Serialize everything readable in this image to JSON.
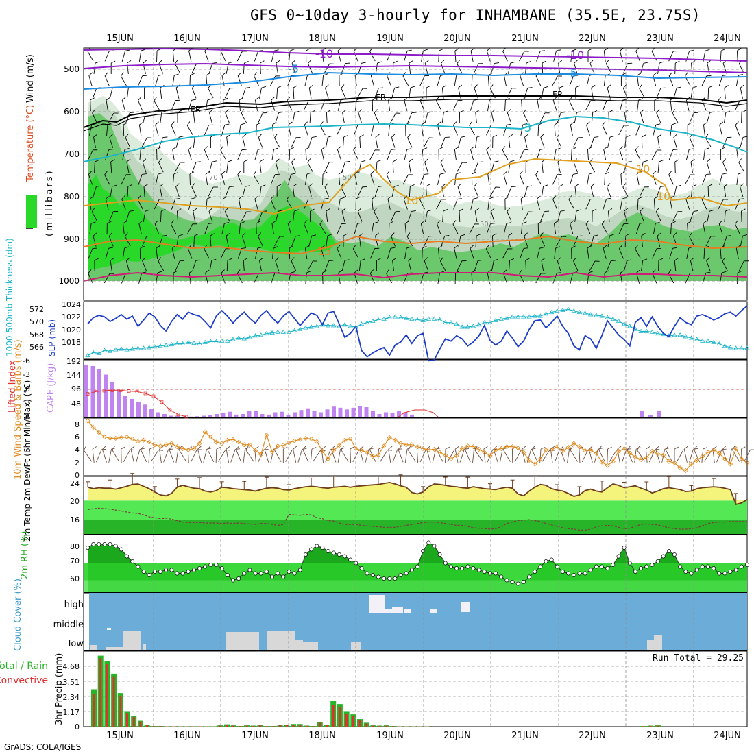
{
  "title": "GFS 0~10day 3-hourly for INHAMBANE (35.5E, 23.75S)",
  "credit": "GrADS: COLA/IGES",
  "dates": [
    "15JUN",
    "16JUN",
    "17JUN",
    "18JUN",
    "19JUN",
    "20JUN",
    "21JUN",
    "22JUN",
    "23JUN",
    "24JUN"
  ],
  "colors": {
    "rh_light": "#dcecdc",
    "rh_mid": "#c0d6c0",
    "rh_green": "#6cc86c",
    "rh_bright": "#2ad82a",
    "purple": "#8c1cc8",
    "blue": "#1c8ce0",
    "cyan": "#1cb4c8",
    "orange": "#e0a020",
    "orange2": "#e87c20",
    "magenta": "#d01c78",
    "slp": "#1c3cc8",
    "thk": "#1cb4c8",
    "cape": "#c084f0",
    "li": "#e03030",
    "wind": "#e08c20",
    "temp_fill": "#f4f47c",
    "temp_line": "#6c3c1c",
    "dew_fill1": "#54e854",
    "dew_fill2": "#28b428",
    "rh2_dark": "#1ca81c",
    "rh2_mid": "#3cd83c",
    "rh2_light": "#6ce86c",
    "cloud_bg": "#6cacd8",
    "precip_tot": "#28b428",
    "precip_conv": "#e03030"
  },
  "chart_data": [
    {
      "type": "contour",
      "panel": "upper-air",
      "ylabel_rh": "RH (%)",
      "ylabel_temp": "Temperature (°C)",
      "ylabel_wind": "Wind (m/s)",
      "ylabel_p": "(millibars)",
      "y_ticks": [
        "500",
        "600",
        "700",
        "800",
        "900",
        "1000"
      ],
      "contour_labels": [
        {
          "text": "-10",
          "color": "purple"
        },
        {
          "text": "-10",
          "color": "purple"
        },
        {
          "text": "-5",
          "color": "blue"
        },
        {
          "text": "-5",
          "color": "blue"
        },
        {
          "text": "FR",
          "color": "black"
        },
        {
          "text": "FR",
          "color": "black"
        },
        {
          "text": "FR",
          "color": "black"
        },
        {
          "text": "5",
          "color": "cyan"
        },
        {
          "text": "10",
          "color": "orange"
        },
        {
          "text": "10",
          "color": "orange"
        },
        {
          "text": "10",
          "color": "orange"
        },
        {
          "text": "15",
          "color": "orange2"
        },
        {
          "text": "70",
          "color": "gray"
        },
        {
          "text": "50",
          "color": "gray"
        },
        {
          "text": "50",
          "color": "gray"
        }
      ]
    },
    {
      "type": "line",
      "panel": "slp-thickness",
      "ylabel_left": "1000-500mb Thickness (dm)",
      "ylabel_right": "SLP (mb)",
      "y_ticks_left": [
        "572",
        "570",
        "568",
        "566"
      ],
      "y_ticks_right": [
        "1024",
        "1022",
        "1020",
        "1018"
      ],
      "series": [
        {
          "name": "SLP",
          "units": "mb",
          "values": [
            1021.5,
            1022.3,
            1022.6,
            1022.4,
            1021.8,
            1022.2,
            1022.7,
            1022.1,
            1022.5,
            1021.2,
            1022.0,
            1022.9,
            1022.4,
            1021.3,
            1020.6,
            1021.8,
            1022.7,
            1022.1,
            1023.0,
            1022.7,
            1022.5,
            1021.8,
            1021.0,
            1022.5,
            1023.2,
            1022.5,
            1021.6,
            1022.4,
            1023.0,
            1022.2,
            1021.6,
            1022.6,
            1023.2,
            1022.3,
            1021.6,
            1022.5,
            1023.1,
            1022.2,
            1021.3,
            1022.1,
            1022.9,
            1022.6,
            1021.4,
            1022.9,
            1023.1,
            1021.5,
            1019.8,
            1020.3,
            1021.2,
            1018.1,
            1017.3,
            1017.8,
            1018.2,
            1018.5,
            1017.5,
            1018.8,
            1019.2,
            1020.1,
            1019.0,
            1020.0,
            1020.3,
            1016.8,
            1016.9,
            1018.3,
            1019.6,
            1019.3,
            1020.0,
            1019.6,
            1018.7,
            1019.2,
            1020.0,
            1021.3,
            1019.4,
            1018.8,
            1019.3,
            1020.6,
            1019.7,
            1018.6,
            1019.3,
            1020.8,
            1021.9,
            1022.0,
            1021.0,
            1021.7,
            1022.5,
            1021.2,
            1020.3,
            1018.7,
            1018.2,
            1020.0,
            1019.6,
            1018.4,
            1020.0,
            1021.9,
            1021.0,
            1020.1,
            1019.5,
            1018.7,
            1021.7,
            1022.3,
            1021.2,
            1022.4,
            1021.2,
            1020.3,
            1019.9,
            1021.2,
            1022.3,
            1021.7,
            1021.4,
            1022.5,
            1022.7,
            1022.4,
            1022.0,
            1022.3,
            1022.8,
            1023.0,
            1022.5,
            1023.2,
            1023.8
          ]
        },
        {
          "name": "Thickness",
          "units": "dm",
          "values": [
            566.0,
            566.4,
            566.3,
            566.7,
            566.6,
            566.8,
            566.9,
            566.8,
            566.9,
            567.0,
            567.0,
            567.1,
            567.2,
            567.3,
            567.4,
            567.5,
            567.6,
            567.6,
            567.8,
            567.7,
            567.6,
            567.8,
            567.9,
            567.9,
            568.0,
            568.0,
            568.2,
            568.4,
            568.3,
            568.5,
            568.7,
            568.8,
            569.0,
            569.1,
            569.2,
            569.2,
            569.2,
            569.4,
            569.6,
            569.8,
            569.9,
            570.0,
            570.2,
            570.1,
            570.1,
            570.0,
            570.2,
            570.0,
            569.9,
            570.3,
            570.5,
            570.7,
            570.9,
            571.0,
            571.2,
            571.3,
            571.2,
            571.1,
            571.0,
            570.9,
            570.8,
            571.0,
            571.0,
            570.9,
            570.5,
            570.5,
            570.3,
            569.9,
            569.9,
            570.0,
            570.2,
            570.5,
            570.5,
            570.8,
            571.0,
            571.1,
            571.3,
            571.3,
            571.3,
            571.3,
            571.4,
            571.4,
            571.7,
            571.9,
            572.1,
            572.2,
            572.3,
            572.1,
            571.9,
            571.8,
            571.6,
            571.5,
            571.4,
            571.2,
            571.0,
            570.7,
            570.3,
            570.0,
            569.6,
            569.3,
            569.3,
            569.2,
            569.0,
            568.9,
            568.7,
            568.8,
            568.8,
            568.6,
            568.4,
            568.2,
            568.0,
            568.0,
            567.8,
            567.6,
            567.3,
            567.1,
            567.0,
            567.0,
            567.0
          ]
        }
      ]
    },
    {
      "type": "bar",
      "panel": "cape-li",
      "ylabel_left": "Lifted Index",
      "ylabel_right": "CAPE (J/kg)",
      "y_ticks_left": [
        "-6",
        "-3",
        "0",
        "3",
        "6"
      ],
      "y_ticks_right": [
        "192",
        "144",
        "96",
        "48"
      ],
      "cape_values": [
        185,
        180,
        170,
        150,
        125,
        95,
        75,
        65,
        55,
        45,
        30,
        18,
        12,
        6,
        6,
        3,
        3,
        4,
        6,
        8,
        12,
        16,
        20,
        10,
        12,
        24,
        22,
        12,
        10,
        18,
        20,
        10,
        18,
        26,
        32,
        24,
        18,
        28,
        38,
        34,
        28,
        34,
        40,
        36,
        22,
        12,
        18,
        16,
        22,
        18,
        10
      ],
      "li_values": [
        1.0,
        0.5,
        0.3,
        0.2,
        0.2,
        0.4,
        0.5,
        0.9,
        1.5,
        2.8,
        4.5,
        5.5,
        6.0
      ]
    },
    {
      "type": "line",
      "panel": "wind10m",
      "ylabel": "10m Wind Speed & Barbs (m/s)",
      "y_ticks": [
        "8",
        "6",
        "4",
        "2",
        "0"
      ],
      "series": [
        {
          "name": "10m Wind Speed",
          "units": "m/s",
          "values": [
            8.5,
            7.5,
            6.7,
            6.0,
            5.8,
            5.8,
            5.9,
            6.0,
            5.7,
            5.3,
            5.5,
            5.2,
            4.8,
            4.6,
            4.8,
            5.0,
            4.5,
            4.2,
            4.0,
            4.2,
            5.0,
            6.8,
            6.0,
            5.2,
            5.0,
            5.5,
            5.6,
            5.2,
            4.8,
            4.8,
            3.9,
            3.3,
            6.3,
            3.7,
            4.6,
            4.7,
            5.1,
            5.4,
            5.6,
            5.8,
            5.7,
            5.3,
            3.8,
            2.6,
            3.9,
            4.7,
            5.5,
            5.7,
            4.2,
            3.9,
            3.6,
            3.0,
            3.2,
            4.6,
            5.9,
            5.5,
            5.0,
            4.8,
            4.8,
            4.5,
            4.2,
            4.0,
            4.1,
            3.6,
            3.2,
            2.6,
            3.1,
            4.2,
            4.6,
            4.5,
            4.1,
            3.6,
            3.1,
            4.0,
            4.2,
            4.5,
            4.5,
            4.3,
            3.6,
            2.4,
            1.8,
            2.6,
            4.0,
            4.0,
            4.5,
            3.8,
            4.4,
            5.0,
            4.5,
            3.9,
            3.9,
            3.5,
            2.1,
            1.6,
            2.2,
            3.8,
            4.2,
            3.5,
            2.9,
            2.5,
            2.8,
            3.8,
            3.4,
            3.2,
            2.2,
            2.0,
            1.2,
            0.8,
            1.8,
            2.4,
            3.0,
            3.6,
            4.0,
            3.5,
            2.6,
            1.8,
            4.2,
            2.6,
            2.0
          ]
        }
      ]
    },
    {
      "type": "area",
      "panel": "temp2m",
      "ylabel": "2m Temp 2m DewPt (6hr Min/Max) (°C)",
      "y_ticks": [
        "24",
        "20",
        "16"
      ],
      "series": [
        {
          "name": "2m Temp",
          "units": "°C",
          "values": [
            22.8,
            22.5,
            22.7,
            22.6,
            22.6,
            22.4,
            22.7,
            23.0,
            23.4,
            23.5,
            23.0,
            22.5,
            21.8,
            21.2,
            21.0,
            21.5,
            22.8,
            23.2,
            22.9,
            22.6,
            22.5,
            22.0,
            21.8,
            22.1,
            22.8,
            22.7,
            22.5,
            22.4,
            22.3,
            22.2,
            22.0,
            22.3,
            22.6,
            22.7,
            22.6,
            22.3,
            22.2,
            22.5,
            22.7,
            22.9,
            23.0,
            22.9,
            22.7,
            22.6,
            22.8,
            22.9,
            23.0,
            22.8,
            23.0,
            23.1,
            23.2,
            23.3,
            23.4,
            23.6,
            23.8,
            23.5,
            23.1,
            22.8,
            21.7,
            21.4,
            21.8,
            22.9,
            23.5,
            23.4,
            23.2,
            23.0,
            22.9,
            22.7,
            22.6,
            22.9,
            22.7,
            22.5,
            22.4,
            22.3,
            22.6,
            22.8,
            22.6,
            21.4,
            21.0,
            22.0,
            22.8,
            23.4,
            23.2,
            22.5,
            22.2,
            22.0,
            21.5,
            20.9,
            21.2,
            22.1,
            22.4,
            22.0,
            21.8,
            22.7,
            23.5,
            23.2,
            22.7,
            22.9,
            23.1,
            22.6,
            22.2,
            21.6,
            22.0,
            22.5,
            22.7,
            22.5,
            22.3,
            21.9,
            22.0,
            22.5,
            22.7,
            22.8,
            22.9,
            22.8,
            22.6,
            22.3,
            19.2,
            19.5,
            20.2
          ]
        },
        {
          "name": "2m DewPt",
          "units": "°C",
          "values": [
            18.1,
            18.3,
            18.4,
            18.3,
            18.2,
            18.0,
            17.8,
            17.6,
            17.4,
            17.3,
            17.0,
            16.6,
            16.4,
            16.2,
            16.3,
            16.1,
            15.8,
            15.5,
            15.4,
            15.4,
            15.4,
            15.3,
            15.3,
            15.3,
            15.2,
            15.3,
            15.2,
            15.3,
            15.2,
            15.1,
            15.0,
            15.2,
            15.2,
            15.0,
            14.8,
            15.0,
            17.1,
            17.0,
            16.9,
            17.1,
            17.0,
            16.4,
            16.2,
            15.8,
            15.7,
            15.3,
            15.0,
            15.0,
            15.0,
            14.8,
            14.7,
            14.6,
            14.5,
            14.4,
            14.4,
            14.4,
            14.6,
            14.8,
            15.0,
            15.2,
            15.4,
            15.5,
            15.5,
            15.4,
            15.2,
            15.0,
            14.8,
            14.8,
            14.6,
            14.3,
            14.2,
            14.1,
            14.0,
            14.1,
            14.5,
            15.2,
            15.5,
            15.8,
            15.9,
            16.0,
            15.8,
            15.6,
            15.2,
            14.9,
            14.6,
            14.3,
            14.1,
            14.0,
            13.8,
            13.8,
            14.0,
            14.5,
            14.7,
            14.8,
            14.7,
            14.4,
            14.1,
            14.2,
            14.6,
            15.0,
            15.1,
            15.0,
            14.9,
            14.6,
            14.3,
            14.1,
            14.0,
            14.0,
            14.1,
            14.3,
            14.7,
            15.2,
            15.4,
            15.5,
            15.5,
            15.6,
            15.6,
            15.6,
            15.6
          ]
        }
      ]
    },
    {
      "type": "area",
      "panel": "rh2m",
      "ylabel": "2m RH (%)",
      "y_ticks": [
        "80",
        "70",
        "60"
      ],
      "series": [
        {
          "name": "2m RH",
          "units": "%",
          "values": [
            79,
            81,
            81,
            81,
            81,
            80,
            78,
            74,
            71,
            68,
            65,
            63,
            65,
            65,
            66,
            66,
            64,
            64,
            65,
            66,
            67,
            68,
            69,
            69,
            67,
            63,
            60,
            61,
            64,
            66,
            64,
            64,
            65,
            62,
            64,
            62,
            65,
            64,
            66,
            75,
            78,
            80,
            79,
            77,
            76,
            75,
            74,
            72,
            70,
            67,
            64,
            63,
            62,
            61,
            61,
            61,
            63,
            64,
            66,
            68,
            77,
            82,
            80,
            75,
            70,
            68,
            67,
            67,
            68,
            67,
            66,
            65,
            64,
            64,
            62,
            60,
            59,
            58,
            59,
            62,
            65,
            68,
            71,
            72,
            68,
            65,
            64,
            63,
            64,
            64,
            66,
            68,
            68,
            67,
            69,
            74,
            79,
            70,
            65,
            67,
            68,
            69,
            71,
            74,
            77,
            75,
            68,
            65,
            64,
            66,
            68,
            68,
            67,
            64,
            64,
            65,
            66,
            68,
            69
          ]
        }
      ]
    },
    {
      "type": "bar",
      "panel": "cloud-cover",
      "ylabel": "Cloud Cover (%)",
      "y_ticks": [
        "high",
        "middle",
        "low"
      ]
    },
    {
      "type": "bar",
      "panel": "precip",
      "ylabel": "3hr Precip (mm)",
      "legend_total": "Total / Rain",
      "legend_conv": "Convective",
      "run_total_label": "Run Total = 29.25",
      "y_ticks": [
        "4.68",
        "3.51",
        "2.34",
        "1.17",
        "0"
      ],
      "total_values": [
        2.9,
        5.5,
        5.05,
        4.1,
        2.6,
        1.2,
        0.85,
        0.45,
        0.12,
        0.05,
        0.05,
        0.02,
        0.02,
        0.02,
        0.02,
        0.02,
        0.02,
        0.03,
        0.03,
        0.1,
        0.18,
        0.1,
        0.05,
        0.1,
        0.08,
        0.15,
        0.05,
        0.05,
        0.15,
        0.15,
        0.2,
        0.2,
        0.08,
        0.05,
        0.35,
        0.15,
        2.0,
        1.75,
        1.2,
        0.95,
        0.58,
        0.3,
        0.1,
        0.08,
        0.1,
        0.05,
        0.02,
        0.02,
        0.02,
        0.02,
        0.02
      ],
      "conv_values": [
        2.5,
        5.3,
        4.85,
        3.9,
        2.4,
        1.05,
        0.75,
        0.4,
        0.1,
        0.04,
        0.04,
        0.02,
        0.02,
        0.02,
        0.02,
        0.02,
        0.02,
        0.02,
        0.02,
        0.08,
        0.15,
        0.08,
        0.04,
        0.08,
        0.06,
        0.12,
        0.04,
        0.04,
        0.12,
        0.12,
        0.15,
        0.16,
        0.07,
        0.04,
        0.3,
        0.12,
        1.7,
        1.5,
        1.0,
        0.8,
        0.48,
        0.25,
        0.08,
        0.06,
        0.08,
        0.04,
        0.02,
        0.02,
        0.02,
        0.02,
        0.02
      ]
    }
  ]
}
